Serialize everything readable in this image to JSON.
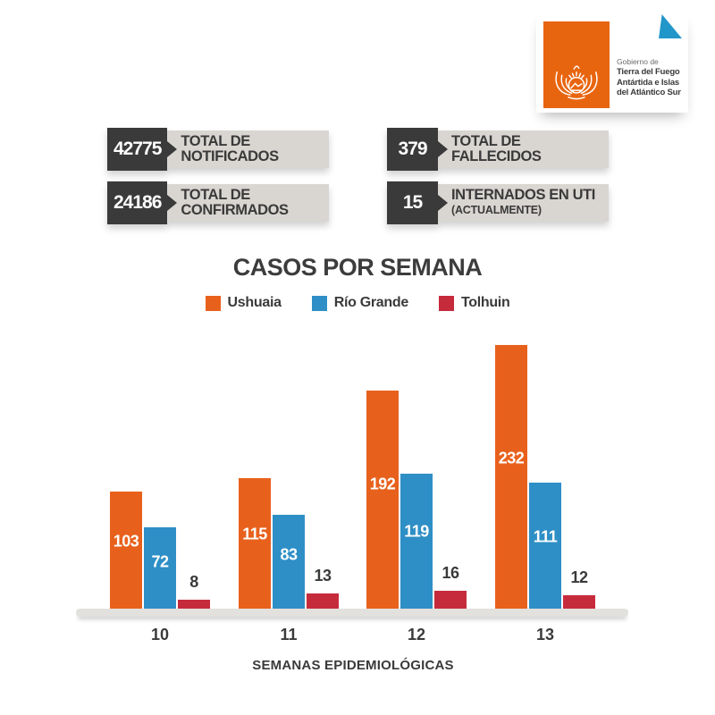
{
  "logo": {
    "agency_prefix": "Gobierno de",
    "agency_line1": "Tierra del Fuego",
    "agency_line2": "Antártida e Islas",
    "agency_line3": "del Atlántico Sur",
    "emblem_icon": "coat-of-arms-wings-sun",
    "corner_icon": "folded-corner-triangle",
    "brand_orange": "#E8650F",
    "triangle_blue": "#2196C9"
  },
  "stats": {
    "value_bg": "#3A3A3A",
    "label_bg": "#D9D6D2",
    "items": [
      {
        "value": "42775",
        "label": "TOTAL DE NOTIFICADOS",
        "sub": ""
      },
      {
        "value": "379",
        "label": "TOTAL DE FALLECIDOS",
        "sub": ""
      },
      {
        "value": "24186",
        "label": "TOTAL DE CONFIRMADOS",
        "sub": ""
      },
      {
        "value": "15",
        "label": "INTERNADOS EN UTI",
        "sub": "(ACTUALMENTE)"
      }
    ]
  },
  "chart_data": {
    "type": "bar",
    "title": "CASOS POR SEMANA",
    "xlabel": "SEMANAS EPIDEMIOLÓGICAS",
    "ylabel": "",
    "categories": [
      "10",
      "11",
      "12",
      "13"
    ],
    "series": [
      {
        "name": "Ushuaia",
        "color": "#E8611C",
        "values": [
          103,
          115,
          192,
          232
        ]
      },
      {
        "name": "Río Grande",
        "color": "#2E8FC6",
        "values": [
          72,
          83,
          119,
          111
        ]
      },
      {
        "name": "Tolhuin",
        "color": "#C62B3C",
        "values": [
          8,
          13,
          16,
          12
        ]
      }
    ],
    "ylim": [
      0,
      240
    ],
    "grid": false,
    "legend_position": "top",
    "value_labels": true,
    "axis_strip_color": "#E3E1DE"
  }
}
